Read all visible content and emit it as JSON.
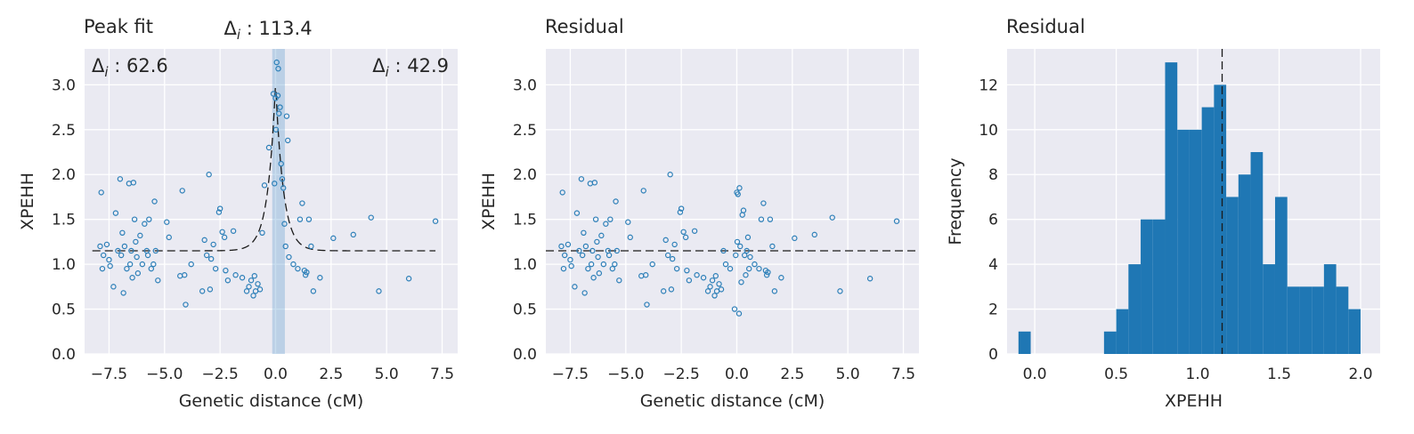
{
  "chart_data": [
    {
      "type": "scatter",
      "title": "Peak fit",
      "xlabel": "Genetic distance (cM)",
      "ylabel": "XPEHH",
      "xlim": [
        -8.6,
        8.2
      ],
      "ylim": [
        0.0,
        3.4
      ],
      "xticks": [
        -7.5,
        -5.0,
        -2.5,
        0.0,
        2.5,
        5.0,
        7.5
      ],
      "xtick_labels": [
        "−7.5",
        "−5.0",
        "−2.5",
        "0.0",
        "2.5",
        "5.0",
        "7.5"
      ],
      "yticks": [
        0.0,
        0.5,
        1.0,
        1.5,
        2.0,
        2.5,
        3.0
      ],
      "ytick_labels": [
        "0.0",
        "0.5",
        "1.0",
        "1.5",
        "2.0",
        "2.5",
        "3.0"
      ],
      "grid": true,
      "baseline": 1.15,
      "peak_center": 0.0,
      "peak_height": 3.02,
      "peak_band": [
        -0.15,
        0.42
      ],
      "annotations": [
        {
          "symbol": "Δ",
          "sub": "i",
          "text": " : 113.4",
          "position": "top-center"
        },
        {
          "symbol": "Δ",
          "sub": "i",
          "text": " : 62.6",
          "position": "top-left"
        },
        {
          "symbol": "Δ",
          "sub": "i",
          "text": " : 42.9",
          "position": "top-right"
        }
      ],
      "series": [
        {
          "x": [
            -7.9,
            -7.85,
            -7.8,
            -7.75,
            -7.6,
            -7.5,
            -7.45,
            -7.3,
            -7.2,
            -7.1,
            -7.0,
            -6.95,
            -6.9,
            -6.85,
            -6.8,
            -6.7,
            -6.6,
            -6.55,
            -6.5,
            -6.45,
            -6.4,
            -6.35,
            -6.3,
            -6.25,
            -6.2,
            -6.1,
            -6.0,
            -5.9,
            -5.8,
            -5.75,
            -5.7,
            -5.6,
            -5.5,
            -5.45,
            -5.4,
            -5.3,
            -4.9,
            -4.8,
            -4.3,
            -4.2,
            -4.1,
            -4.05,
            -3.8,
            -3.3,
            -3.2,
            -3.1,
            -3.0,
            -2.95,
            -2.9,
            -2.8,
            -2.7,
            -2.55,
            -2.5,
            -2.4,
            -2.3,
            -2.25,
            -2.15,
            -1.9,
            -1.8,
            -1.5,
            -1.3,
            -1.2,
            -1.1,
            -1.0,
            -0.95,
            -0.9,
            -0.8,
            -0.7,
            -0.6,
            -0.5,
            -0.3,
            -0.1,
            -0.05,
            0.0,
            0.02,
            0.05,
            0.1,
            0.12,
            0.15,
            0.2,
            0.25,
            0.3,
            0.35,
            0.4,
            0.45,
            0.5,
            0.55,
            0.6,
            0.8,
            1.0,
            1.1,
            1.2,
            1.3,
            1.35,
            1.4,
            1.5,
            1.6,
            1.7,
            2.0,
            2.6,
            3.5,
            4.3,
            4.65,
            6.0,
            7.2
          ],
          "y": [
            1.2,
            1.8,
            0.95,
            1.1,
            1.22,
            1.05,
            0.98,
            0.75,
            1.57,
            1.15,
            1.95,
            1.1,
            1.35,
            0.68,
            1.2,
            0.95,
            1.9,
            1.0,
            1.15,
            0.85,
            1.91,
            1.5,
            1.25,
            1.08,
            0.9,
            1.32,
            1.0,
            1.45,
            1.15,
            1.1,
            1.5,
            0.95,
            1.0,
            1.7,
            1.15,
            0.82,
            1.47,
            1.3,
            0.87,
            1.82,
            0.88,
            0.55,
            1.0,
            0.7,
            1.27,
            1.1,
            2.0,
            0.72,
            1.06,
            1.22,
            0.95,
            1.58,
            1.62,
            1.36,
            1.3,
            0.93,
            0.82,
            1.37,
            0.88,
            0.85,
            0.7,
            0.75,
            0.82,
            0.65,
            0.87,
            0.7,
            0.78,
            0.72,
            1.35,
            1.88,
            2.3,
            2.9,
            1.9,
            2.85,
            2.5,
            3.25,
            2.88,
            3.18,
            2.68,
            2.75,
            2.12,
            1.95,
            1.85,
            1.45,
            1.2,
            2.65,
            2.38,
            1.08,
            1.0,
            0.95,
            1.5,
            1.68,
            0.93,
            0.88,
            0.91,
            1.5,
            1.2,
            0.7,
            0.85,
            1.29,
            1.33,
            1.52,
            0.7,
            0.84,
            1.48
          ]
        }
      ]
    },
    {
      "type": "scatter",
      "title": "Residual",
      "xlabel": "Genetic distance (cM)",
      "ylabel": "XPEHH",
      "xlim": [
        -8.6,
        8.2
      ],
      "ylim": [
        0.0,
        3.4
      ],
      "xticks": [
        -7.5,
        -5.0,
        -2.5,
        0.0,
        2.5,
        5.0,
        7.5
      ],
      "xtick_labels": [
        "−7.5",
        "−5.0",
        "−2.5",
        "0.0",
        "2.5",
        "5.0",
        "7.5"
      ],
      "yticks": [
        0.0,
        0.5,
        1.0,
        1.5,
        2.0,
        2.5,
        3.0
      ],
      "ytick_labels": [
        "0.0",
        "0.5",
        "1.0",
        "1.5",
        "2.0",
        "2.5",
        "3.0"
      ],
      "grid": true,
      "hline": 1.15,
      "series": [
        {
          "x": [
            -7.9,
            -7.85,
            -7.8,
            -7.75,
            -7.6,
            -7.5,
            -7.45,
            -7.3,
            -7.2,
            -7.1,
            -7.0,
            -6.95,
            -6.9,
            -6.85,
            -6.8,
            -6.7,
            -6.6,
            -6.55,
            -6.5,
            -6.45,
            -6.4,
            -6.35,
            -6.3,
            -6.25,
            -6.2,
            -6.1,
            -6.0,
            -5.9,
            -5.8,
            -5.75,
            -5.7,
            -5.6,
            -5.5,
            -5.45,
            -5.4,
            -5.3,
            -4.9,
            -4.8,
            -4.3,
            -4.2,
            -4.1,
            -4.05,
            -3.8,
            -3.3,
            -3.2,
            -3.1,
            -3.0,
            -2.95,
            -2.9,
            -2.8,
            -2.7,
            -2.55,
            -2.5,
            -2.4,
            -2.3,
            -2.25,
            -2.15,
            -1.9,
            -1.8,
            -1.5,
            -1.3,
            -1.2,
            -1.1,
            -1.0,
            -0.95,
            -0.9,
            -0.8,
            -0.7,
            -0.6,
            -0.5,
            -0.3,
            -0.1,
            -0.05,
            0.0,
            0.02,
            0.05,
            0.1,
            0.12,
            0.15,
            0.2,
            0.25,
            0.3,
            0.35,
            0.4,
            0.45,
            0.5,
            0.55,
            0.6,
            0.8,
            1.0,
            1.1,
            1.2,
            1.3,
            1.35,
            1.4,
            1.5,
            1.6,
            1.7,
            2.0,
            2.6,
            3.5,
            4.3,
            4.65,
            6.0,
            7.2
          ],
          "y": [
            1.2,
            1.8,
            0.95,
            1.1,
            1.22,
            1.05,
            0.98,
            0.75,
            1.57,
            1.15,
            1.95,
            1.1,
            1.35,
            0.68,
            1.2,
            0.95,
            1.9,
            1.0,
            1.15,
            0.85,
            1.91,
            1.5,
            1.25,
            1.08,
            0.9,
            1.32,
            1.0,
            1.45,
            1.15,
            1.1,
            1.5,
            0.95,
            1.0,
            1.7,
            1.15,
            0.82,
            1.47,
            1.3,
            0.87,
            1.82,
            0.88,
            0.55,
            1.0,
            0.7,
            1.27,
            1.1,
            2.0,
            0.72,
            1.06,
            1.22,
            0.95,
            1.58,
            1.62,
            1.36,
            1.3,
            0.93,
            0.82,
            1.37,
            0.88,
            0.85,
            0.7,
            0.75,
            0.82,
            0.65,
            0.87,
            0.7,
            0.78,
            0.72,
            1.15,
            1.0,
            0.95,
            0.5,
            1.1,
            1.8,
            1.25,
            1.78,
            0.45,
            1.85,
            1.2,
            0.8,
            1.55,
            1.6,
            1.1,
            0.88,
            1.15,
            1.3,
            0.95,
            1.08,
            1.0,
            0.95,
            1.5,
            1.68,
            0.93,
            0.88,
            0.91,
            1.5,
            1.2,
            0.7,
            0.85,
            1.29,
            1.33,
            1.52,
            0.7,
            0.84,
            1.48
          ]
        }
      ]
    },
    {
      "type": "bar",
      "title": "Residual",
      "xlabel": "XPEHH",
      "ylabel": "Frequency",
      "xlim": [
        -0.17,
        2.12
      ],
      "ylim": [
        0,
        13.6
      ],
      "xticks": [
        0.0,
        0.5,
        1.0,
        1.5,
        2.0
      ],
      "xtick_labels": [
        "0.0",
        "0.5",
        "1.0",
        "1.5",
        "2.0"
      ],
      "yticks": [
        0,
        2,
        4,
        6,
        8,
        10,
        12
      ],
      "ytick_labels": [
        "0",
        "2",
        "4",
        "6",
        "8",
        "10",
        "12"
      ],
      "grid": true,
      "vline": 1.15,
      "bin_width": 0.075,
      "bin_starts": [
        -0.1,
        0.425,
        0.5,
        0.575,
        0.65,
        0.725,
        0.8,
        0.875,
        0.95,
        1.025,
        1.1,
        1.175,
        1.25,
        1.325,
        1.4,
        1.475,
        1.55,
        1.625,
        1.7,
        1.775,
        1.85,
        1.925
      ],
      "values": [
        1,
        1,
        2,
        4,
        6,
        6,
        13,
        10,
        10,
        11,
        12,
        7,
        8,
        9,
        4,
        7,
        3,
        3,
        3,
        4,
        3,
        2
      ]
    }
  ]
}
